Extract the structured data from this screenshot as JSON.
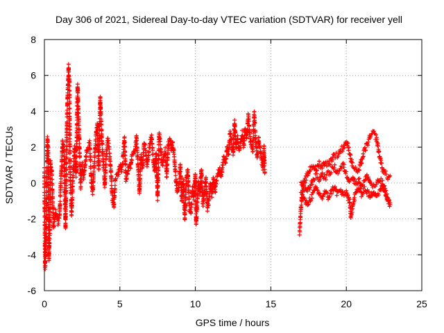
{
  "chart_data": {
    "type": "scatter",
    "title": "Day 306 of 2021, Sidereal Day-to-day VTEC variation (SDTVAR) for receiver yell",
    "xlabel": "GPS time / hours",
    "ylabel": "SDTVAR / TECUs",
    "xlim": [
      0,
      25
    ],
    "ylim": [
      -6,
      8
    ],
    "xticks": [
      0,
      5,
      10,
      15,
      20,
      25
    ],
    "yticks": [
      -6,
      -4,
      -2,
      0,
      2,
      4,
      6,
      8
    ],
    "grid": true,
    "marker": "+",
    "series": [
      {
        "name": "SDTVAR",
        "color": "#ff0000",
        "trace": [
          [
            0.0,
            0.7
          ],
          [
            0.05,
            -4.8
          ],
          [
            0.1,
            -3.5
          ],
          [
            0.15,
            -1.0
          ],
          [
            0.2,
            2.5
          ],
          [
            0.25,
            1.8
          ],
          [
            0.3,
            -4.2
          ],
          [
            0.35,
            -3.0
          ],
          [
            0.4,
            1.2
          ],
          [
            0.5,
            0.5
          ],
          [
            0.6,
            -2.5
          ],
          [
            0.75,
            -1.5
          ],
          [
            0.9,
            -2.2
          ],
          [
            1.0,
            -1.8
          ],
          [
            1.1,
            0.3
          ],
          [
            1.2,
            2.3
          ],
          [
            1.3,
            1.8
          ],
          [
            1.4,
            -2.5
          ],
          [
            1.5,
            3.8
          ],
          [
            1.6,
            6.5
          ],
          [
            1.65,
            5.7
          ],
          [
            1.7,
            0.6
          ],
          [
            1.8,
            -1.8
          ],
          [
            1.9,
            0.5
          ],
          [
            2.0,
            2.0
          ],
          [
            2.1,
            0.4
          ],
          [
            2.2,
            5.4
          ],
          [
            2.3,
            2.7
          ],
          [
            2.4,
            -0.2
          ],
          [
            2.5,
            1.0
          ],
          [
            2.6,
            0.3
          ],
          [
            2.8,
            1.8
          ],
          [
            3.0,
            2.2
          ],
          [
            3.1,
            0.2
          ],
          [
            3.2,
            -0.5
          ],
          [
            3.3,
            1.0
          ],
          [
            3.4,
            2.5
          ],
          [
            3.5,
            3.2
          ],
          [
            3.6,
            0.8
          ],
          [
            3.7,
            4.8
          ],
          [
            3.8,
            2.5
          ],
          [
            3.9,
            1.2
          ],
          [
            4.0,
            -0.2
          ],
          [
            4.1,
            1.6
          ],
          [
            4.2,
            2.5
          ],
          [
            4.3,
            1.8
          ],
          [
            4.4,
            0.7
          ],
          [
            4.5,
            -0.8
          ],
          [
            4.6,
            -1.3
          ],
          [
            4.7,
            0.2
          ],
          [
            4.9,
            0.5
          ],
          [
            5.0,
            1.0
          ],
          [
            5.1,
            0.7
          ],
          [
            5.2,
            1.3
          ],
          [
            5.3,
            2.6
          ],
          [
            5.4,
            0.2
          ],
          [
            5.5,
            0.5
          ],
          [
            5.6,
            1.0
          ],
          [
            5.7,
            0.8
          ],
          [
            5.8,
            1.5
          ],
          [
            6.0,
            1.8
          ],
          [
            6.1,
            2.5
          ],
          [
            6.2,
            1.0
          ],
          [
            6.3,
            -0.5
          ],
          [
            6.4,
            1.5
          ],
          [
            6.5,
            0.8
          ],
          [
            6.6,
            2.2
          ],
          [
            6.7,
            1.9
          ],
          [
            6.8,
            1.0
          ],
          [
            7.0,
            2.2
          ],
          [
            7.1,
            2.6
          ],
          [
            7.2,
            1.4
          ],
          [
            7.3,
            0.7
          ],
          [
            7.4,
            1.6
          ],
          [
            7.5,
            -0.8
          ],
          [
            7.6,
            2.8
          ],
          [
            7.7,
            2.0
          ],
          [
            7.8,
            1.0
          ],
          [
            8.0,
            1.8
          ],
          [
            8.1,
            0.4
          ],
          [
            8.2,
            2.1
          ],
          [
            8.3,
            2.5
          ],
          [
            8.4,
            1.9
          ],
          [
            8.5,
            2.2
          ],
          [
            8.6,
            1.5
          ],
          [
            8.7,
            0.3
          ],
          [
            8.8,
            -0.5
          ],
          [
            8.9,
            -0.3
          ],
          [
            9.0,
            1.0
          ],
          [
            9.1,
            -1.0
          ],
          [
            9.2,
            0.2
          ],
          [
            9.3,
            -2.0
          ],
          [
            9.4,
            0.2
          ],
          [
            9.5,
            0.7
          ],
          [
            9.6,
            -1.4
          ],
          [
            9.7,
            -1.7
          ],
          [
            9.8,
            -0.3
          ],
          [
            9.9,
            -0.8
          ],
          [
            10.0,
            0.5
          ],
          [
            10.05,
            -2.3
          ],
          [
            10.1,
            -1.5
          ],
          [
            10.2,
            0.0
          ],
          [
            10.3,
            -0.5
          ],
          [
            10.4,
            0.8
          ],
          [
            10.5,
            -1.2
          ],
          [
            10.6,
            -0.5
          ],
          [
            10.7,
            0.3
          ],
          [
            10.8,
            -1.4
          ],
          [
            10.9,
            -1.0
          ],
          [
            11.0,
            0.0
          ],
          [
            11.1,
            -0.7
          ],
          [
            11.2,
            0.3
          ],
          [
            11.3,
            -0.5
          ],
          [
            11.4,
            0.2
          ],
          [
            11.5,
            0.5
          ],
          [
            11.6,
            0.8
          ],
          [
            11.7,
            0.3
          ],
          [
            11.8,
            1.0
          ],
          [
            11.9,
            1.5
          ],
          [
            12.0,
            1.2
          ],
          [
            12.1,
            2.0
          ],
          [
            12.2,
            1.6
          ],
          [
            12.3,
            2.8
          ],
          [
            12.4,
            2.2
          ],
          [
            12.5,
            1.6
          ],
          [
            12.6,
            3.4
          ],
          [
            12.7,
            2.0
          ],
          [
            12.8,
            2.5
          ],
          [
            12.9,
            1.8
          ],
          [
            13.0,
            2.2
          ],
          [
            13.1,
            2.8
          ],
          [
            13.2,
            2.0
          ],
          [
            13.3,
            3.0
          ],
          [
            13.4,
            2.5
          ],
          [
            13.5,
            3.7
          ],
          [
            13.6,
            2.8
          ],
          [
            13.7,
            2.0
          ],
          [
            13.8,
            1.8
          ],
          [
            13.9,
            3.9
          ],
          [
            14.0,
            2.2
          ],
          [
            14.1,
            1.5
          ],
          [
            14.2,
            2.5
          ],
          [
            14.3,
            1.8
          ],
          [
            14.4,
            1.2
          ],
          [
            14.5,
            0.8
          ],
          [
            14.55,
            2.0
          ],
          [
            14.6,
            0.6
          ]
        ],
        "trace2": [
          [
            16.9,
            -2.8
          ],
          [
            16.95,
            -2.0
          ],
          [
            17.0,
            -1.3
          ],
          [
            17.1,
            -0.4
          ],
          [
            17.2,
            0.0
          ],
          [
            17.4,
            0.4
          ],
          [
            17.6,
            0.8
          ],
          [
            17.8,
            1.0
          ],
          [
            18.0,
            0.7
          ],
          [
            18.2,
            1.1
          ],
          [
            18.4,
            0.9
          ],
          [
            18.6,
            1.2
          ],
          [
            18.8,
            1.0
          ],
          [
            19.0,
            1.3
          ],
          [
            19.2,
            1.6
          ],
          [
            19.4,
            1.5
          ],
          [
            19.6,
            1.8
          ],
          [
            19.8,
            2.0
          ],
          [
            20.0,
            2.3
          ],
          [
            20.2,
            1.8
          ],
          [
            20.4,
            1.0
          ],
          [
            20.6,
            0.8
          ],
          [
            20.8,
            0.6
          ],
          [
            21.0,
            1.2
          ],
          [
            21.2,
            1.8
          ],
          [
            21.4,
            2.2
          ],
          [
            21.6,
            2.6
          ],
          [
            21.8,
            2.8
          ],
          [
            22.0,
            2.5
          ],
          [
            22.2,
            1.5
          ],
          [
            22.4,
            0.8
          ],
          [
            22.6,
            0.5
          ],
          [
            22.8,
            0.3
          ],
          [
            22.9,
            0.4
          ]
        ],
        "trace3": [
          [
            17.0,
            0.0
          ],
          [
            17.2,
            -0.3
          ],
          [
            17.4,
            -0.5
          ],
          [
            17.6,
            -0.2
          ],
          [
            17.8,
            0.2
          ],
          [
            18.0,
            0.4
          ],
          [
            18.2,
            0.2
          ],
          [
            18.4,
            0.5
          ],
          [
            18.6,
            0.3
          ],
          [
            18.8,
            0.5
          ],
          [
            19.0,
            0.7
          ],
          [
            19.2,
            0.9
          ],
          [
            19.4,
            0.6
          ],
          [
            19.6,
            0.8
          ],
          [
            19.8,
            1.0
          ],
          [
            20.0,
            0.5
          ],
          [
            20.2,
            0.2
          ],
          [
            20.4,
            0.3
          ],
          [
            20.6,
            0.0
          ],
          [
            20.8,
            0.2
          ],
          [
            21.0,
            -0.1
          ],
          [
            21.2,
            0.1
          ],
          [
            21.4,
            0.4
          ],
          [
            21.6,
            0.0
          ],
          [
            21.8,
            -0.2
          ],
          [
            22.0,
            -0.1
          ],
          [
            22.2,
            0.2
          ],
          [
            22.4,
            0.0
          ],
          [
            22.6,
            -0.5
          ],
          [
            22.8,
            -1.0
          ],
          [
            22.9,
            -1.2
          ]
        ],
        "trace4": [
          [
            17.0,
            -0.6
          ],
          [
            17.2,
            -0.9
          ],
          [
            17.4,
            -1.2
          ],
          [
            17.6,
            -0.9
          ],
          [
            17.8,
            -0.6
          ],
          [
            18.0,
            -0.3
          ],
          [
            18.2,
            -0.6
          ],
          [
            18.4,
            -0.8
          ],
          [
            18.6,
            -0.5
          ],
          [
            18.8,
            -0.8
          ],
          [
            19.0,
            -0.5
          ],
          [
            19.2,
            -0.2
          ],
          [
            19.4,
            -0.6
          ],
          [
            19.6,
            -0.4
          ],
          [
            19.8,
            -0.7
          ],
          [
            20.0,
            -0.5
          ],
          [
            20.2,
            -1.0
          ],
          [
            20.3,
            -1.8
          ],
          [
            20.4,
            -1.4
          ],
          [
            20.6,
            -0.6
          ],
          [
            20.8,
            -0.3
          ],
          [
            21.0,
            -0.6
          ],
          [
            21.2,
            -0.3
          ],
          [
            21.4,
            -0.5
          ],
          [
            21.6,
            -0.8
          ],
          [
            21.8,
            -0.4
          ],
          [
            22.0,
            -0.7
          ],
          [
            22.2,
            -0.5
          ],
          [
            22.4,
            -0.2
          ],
          [
            22.6,
            -0.6
          ],
          [
            22.8,
            -1.0
          ],
          [
            22.9,
            -1.1
          ]
        ]
      }
    ]
  }
}
